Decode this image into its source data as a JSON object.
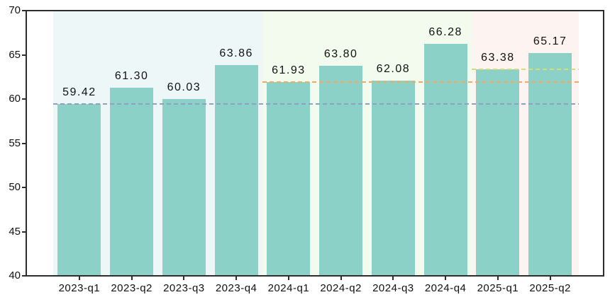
{
  "chart_data": {
    "type": "bar",
    "title": "",
    "xlabel": "",
    "ylabel": "",
    "categories": [
      "2023-q1",
      "2023-q2",
      "2023-q3",
      "2023-q4",
      "2024-q1",
      "2024-q2",
      "2024-q3",
      "2024-q4",
      "2025-q1",
      "2025-q2"
    ],
    "values": [
      59.42,
      61.3,
      60.03,
      63.86,
      61.93,
      63.8,
      62.08,
      66.28,
      63.38,
      65.17
    ],
    "value_labels": [
      "59.42",
      "61.30",
      "60.03",
      "63.86",
      "61.93",
      "63.80",
      "62.08",
      "66.28",
      "63.38",
      "65.17"
    ],
    "bar_color": "#8cd1c8",
    "ylim": [
      40,
      70
    ],
    "yticks": [
      70,
      65,
      60,
      55,
      50,
      45,
      40
    ],
    "grid": false,
    "legend": null,
    "background_bands": [
      {
        "name": "2023",
        "start_index": -0.5,
        "end_index": 3.5,
        "color": "#eef7f8"
      },
      {
        "name": "2024",
        "start_index": 3.5,
        "end_index": 7.5,
        "color": "#f3faee"
      },
      {
        "name": "2025",
        "start_index": 7.5,
        "end_index": 9.55,
        "color": "#fdf4f1"
      }
    ],
    "reference_lines": [
      {
        "name": "2023-q1-level",
        "value": 59.42,
        "start_index": -0.5,
        "end_index": 9.55,
        "color": "#8fa0c4",
        "style": "dashed"
      },
      {
        "name": "2024-q1-level",
        "value": 61.93,
        "start_index": 3.5,
        "end_index": 9.55,
        "color": "#f4a95e",
        "style": "dashed"
      },
      {
        "name": "2025-q1-level",
        "value": 63.38,
        "start_index": 7.5,
        "end_index": 9.55,
        "color": "#d6dc75",
        "style": "dashed"
      }
    ],
    "axis_color": "#2d2d2d"
  }
}
